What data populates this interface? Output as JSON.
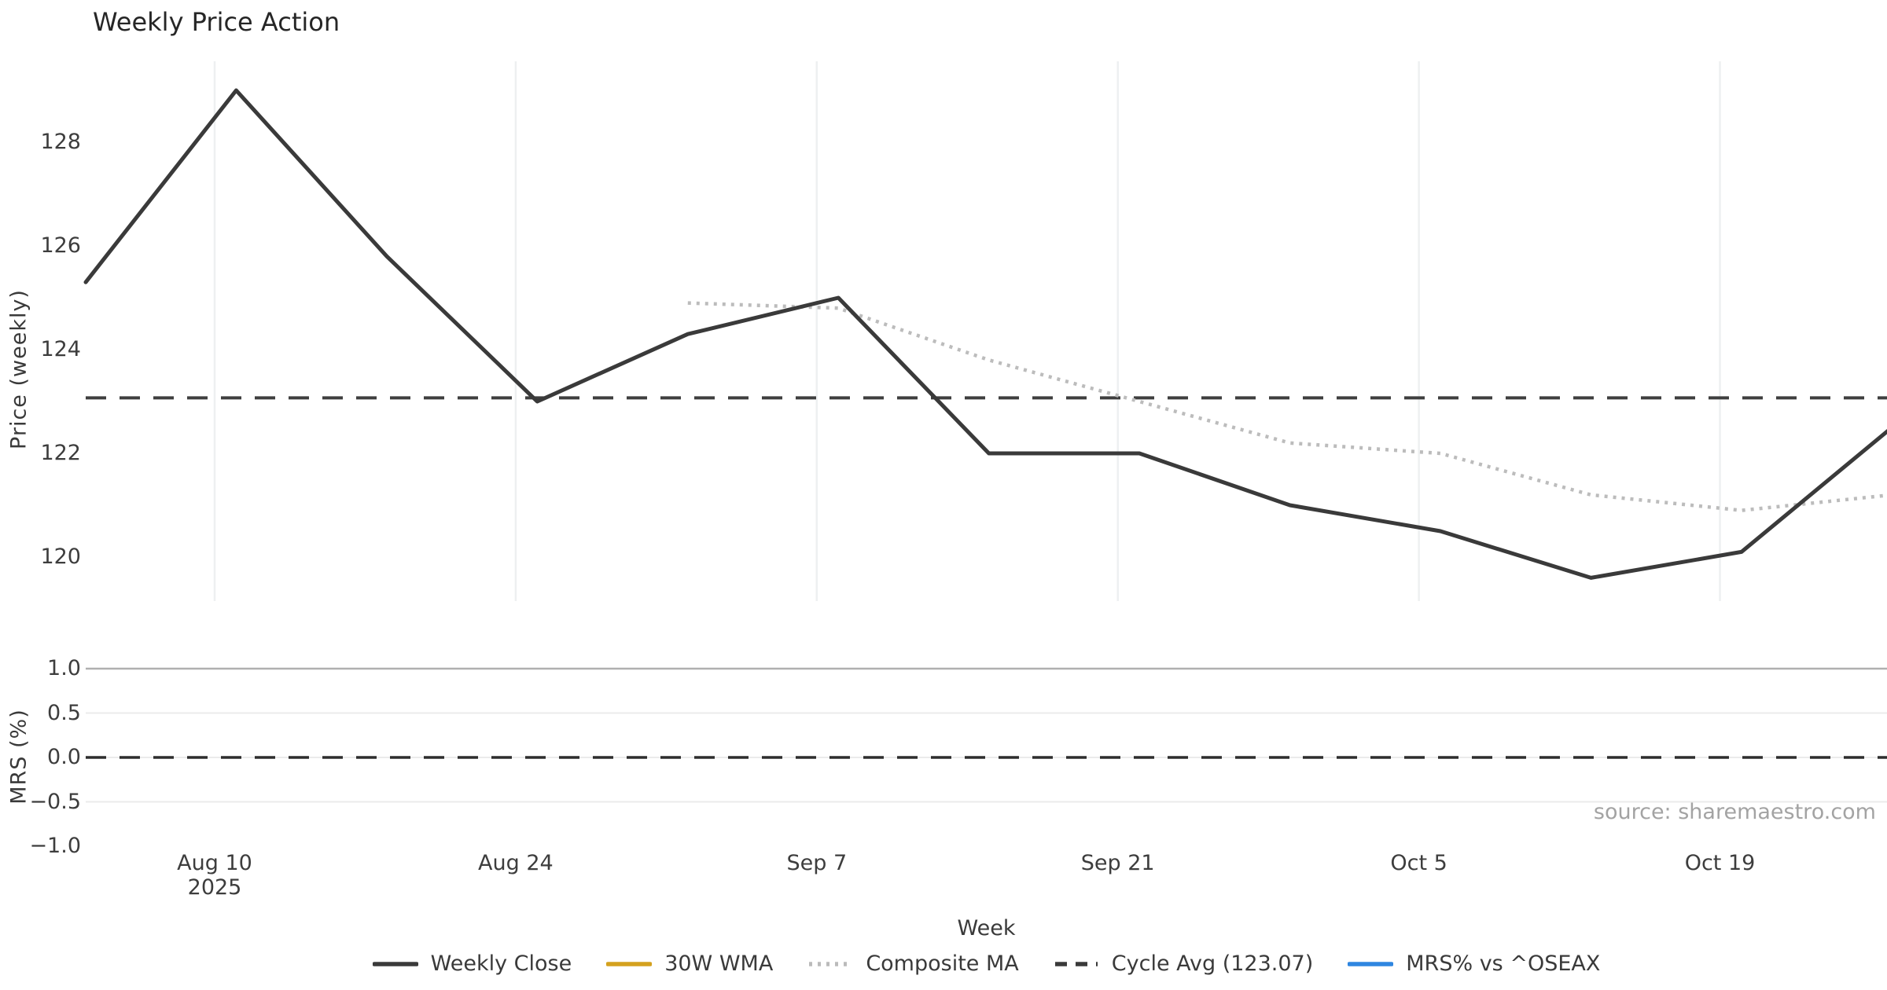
{
  "title": "Weekly Price Action",
  "source": "source: sharemaestro.com",
  "axes": {
    "price_label": "Price (weekly)",
    "mrs_label": "MRS (%)",
    "x_label": "Week",
    "price_tick_labels": [
      "128",
      "126",
      "124",
      "122",
      "120"
    ],
    "mrs_tick_labels": [
      "1.0",
      "0.5",
      "0.0",
      "−0.5",
      "−1.0"
    ],
    "x_tick_labels": [
      "Aug 10",
      "Aug 24",
      "Sep 7",
      "Sep 21",
      "Oct 5",
      "Oct 19"
    ],
    "x_tick_year": "2025"
  },
  "legend": [
    {
      "label": "Weekly Close",
      "color": "#3a3a3a",
      "style": "solid"
    },
    {
      "label": "30W WMA",
      "color": "#d4a11e",
      "style": "solid"
    },
    {
      "label": "Composite MA",
      "color": "#bbbbbb",
      "style": "dotted"
    },
    {
      "label": "Cycle Avg (123.07)",
      "color": "#3a3a3a",
      "style": "dashed"
    },
    {
      "label": "MRS% vs ^OSEAX",
      "color": "#2f86e0",
      "style": "solid"
    }
  ],
  "colors": {
    "weekly_close": "#3a3a3a",
    "composite_ma": "#bcbcbc",
    "cycle_avg": "#3f3f3f",
    "wma_30w": "#d4a11e",
    "mrs_line": "#2f86e0",
    "mrs_zero_dash": "#2d2d2d",
    "mrs_threshold": "#b0b0b0",
    "grid_light": "#ebebeb",
    "grid_vertical": "#eef0f1"
  },
  "chart_data": {
    "type": "line",
    "title": "Weekly Price Action",
    "xlabel": "Week",
    "source": "source: sharemaestro.com",
    "weeks": [
      "2025-08-04",
      "2025-08-11",
      "2025-08-18",
      "2025-08-25",
      "2025-09-01",
      "2025-09-08",
      "2025-09-15",
      "2025-09-22",
      "2025-09-29",
      "2025-10-06",
      "2025-10-13",
      "2025-10-20",
      "2025-10-27"
    ],
    "panels": [
      {
        "ylabel": "Price (weekly)",
        "ylim": [
          119.1,
          129.6
        ],
        "yticks": [
          120,
          122,
          124,
          126,
          128
        ],
        "xticks": [
          "Aug 10",
          "Aug 24",
          "Sep 7",
          "Sep 21",
          "Oct 5",
          "Oct 19"
        ],
        "xtick_year": "2025",
        "grid": "vertical-only",
        "series": [
          {
            "name": "Weekly Close",
            "style": "solid",
            "color": "#3a3a3a",
            "values": [
              125.3,
              129.0,
              125.8,
              123.0,
              124.3,
              125.0,
              122.0,
              122.0,
              121.0,
              120.5,
              119.6,
              120.1,
              122.5
            ]
          },
          {
            "name": "Composite MA",
            "style": "dotted",
            "color": "#bcbcbc",
            "values": [
              null,
              null,
              null,
              null,
              124.9,
              124.8,
              123.8,
              123.0,
              122.2,
              122.0,
              121.2,
              120.9,
              121.2
            ]
          },
          {
            "name": "Cycle Avg",
            "style": "dashed",
            "color": "#3f3f3f",
            "constant": 123.07
          },
          {
            "name": "30W WMA",
            "style": "solid",
            "color": "#d4a11e",
            "values": []
          }
        ]
      },
      {
        "ylabel": "MRS (%)",
        "ylim": [
          -1.05,
          1.05
        ],
        "yticks": [
          1.0,
          0.5,
          0.0,
          -0.5,
          -1.0
        ],
        "grid": "horizontal-only",
        "series": [
          {
            "name": "MRS% vs ^OSEAX",
            "style": "solid",
            "color": "#2f86e0",
            "values": []
          },
          {
            "name": "Zero line",
            "style": "dashed",
            "color": "#2d2d2d",
            "constant": 0.0
          },
          {
            "name": "Upper threshold",
            "style": "solid",
            "color": "#b0b0b0",
            "constant": 1.0
          }
        ]
      }
    ],
    "legend_position": "bottom-center",
    "legend_entries": [
      "Weekly Close",
      "30W WMA",
      "Composite MA",
      "Cycle Avg (123.07)",
      "MRS% vs ^OSEAX"
    ]
  }
}
